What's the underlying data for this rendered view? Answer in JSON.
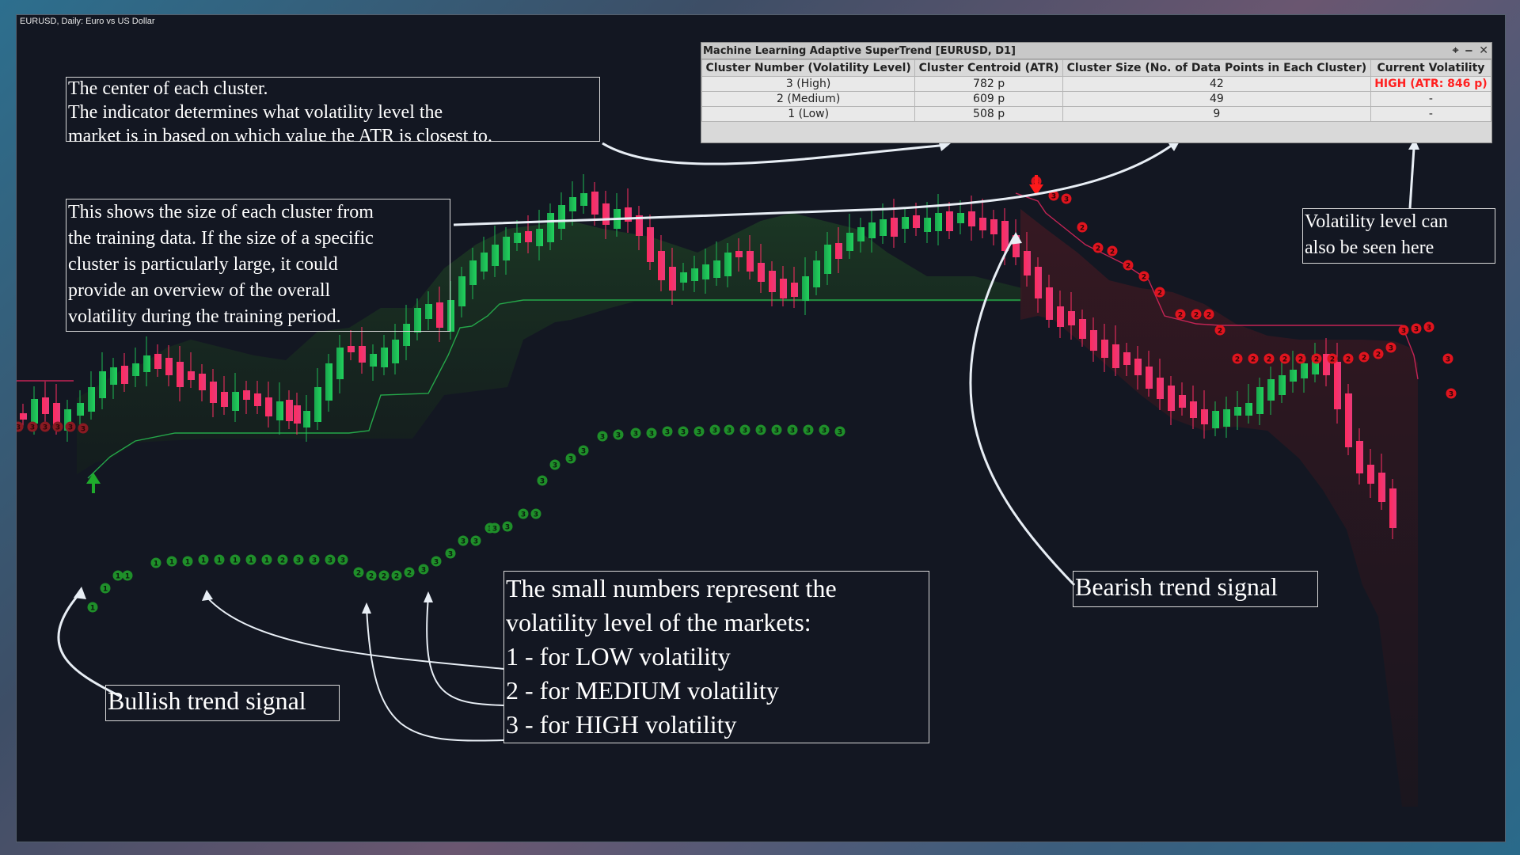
{
  "chart": {
    "symbol_label": "EURUSD, Daily:  Euro vs US Dollar"
  },
  "panel": {
    "title": "Machine Learning Adaptive SuperTrend [EURUSD, D1]",
    "pin_icon": "pin-icon",
    "minimize_icon": "minimize-icon",
    "close_icon": "close-icon",
    "headers": [
      "Cluster Number (Volatility Level)",
      "Cluster Centroid (ATR)",
      "Cluster Size (No. of Data Points in Each Cluster)",
      "Current Volatility"
    ],
    "rows": [
      [
        "3 (High)",
        "782 p",
        "42",
        "HIGH (ATR: 846 p)"
      ],
      [
        "2 (Medium)",
        "609 p",
        "49",
        "-"
      ],
      [
        "1 (Low)",
        "508 p",
        "9",
        "-"
      ]
    ],
    "highlight_color": "#ff2020"
  },
  "annotations": {
    "centroid": [
      "The center of each cluster.",
      "The indicator determines what volatility level the",
      "market is in based on which value the ATR is closest to."
    ],
    "size": [
      "This shows the size of each cluster from",
      "the training data. If the size of a specific",
      "cluster is particularly large, it could",
      "provide an overview of the overall",
      "volatility during the training period."
    ],
    "volatility": [
      "Volatility level can",
      "also be seen here"
    ],
    "numbers": [
      "The small numbers represent the",
      "volatility level of the markets:",
      "1 - for LOW volatility",
      "2 - for MEDIUM volatility",
      "3 - for HIGH volatility"
    ],
    "bearish": "Bearish trend signal",
    "bullish": "Bullish trend signal"
  },
  "colors": {
    "background": "#131722",
    "bull": "#1db954",
    "bear": "#ff2e63",
    "bull_marker": "#1f8f2a",
    "bear_marker": "#e0141e"
  },
  "markers": {
    "bull": [
      "1",
      "1",
      "1",
      "1",
      "1",
      "1",
      "1",
      "1",
      "1",
      "1",
      "1",
      "1",
      "2",
      "3",
      "3",
      "3",
      "3",
      "2",
      "2",
      "2",
      "2",
      "2",
      "3",
      "3",
      "3",
      "3",
      "3",
      "3",
      "3",
      "3",
      "3",
      "3",
      "3",
      "3",
      "3",
      "3",
      "3",
      "3",
      "3",
      "3",
      "3",
      "3",
      "3",
      "3",
      "3",
      "3",
      "3",
      "3",
      "3",
      "3",
      "3",
      "3"
    ],
    "bear": [
      "3",
      "3",
      "3",
      "2",
      "2",
      "2",
      "2",
      "2",
      "2",
      "2",
      "2",
      "2",
      "2",
      "2",
      "2",
      "2",
      "2",
      "2",
      "2",
      "2",
      "2",
      "2",
      "2",
      "3",
      "3",
      "3",
      "3",
      "3"
    ],
    "signal_up": "↑",
    "signal_down": "↓"
  }
}
